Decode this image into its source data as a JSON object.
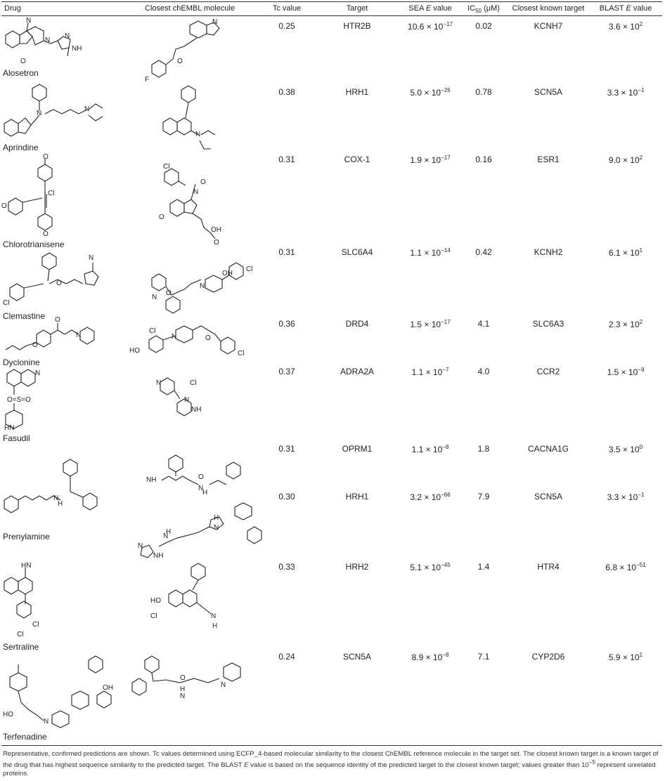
{
  "headers": {
    "drug": "Drug",
    "closest_chembl": "Closest chEMBL molecule",
    "tc": "Tc value",
    "target": "Target",
    "sea": "SEA E value",
    "ic50": "IC50 (μM)",
    "closest_known": "Closest known target",
    "blast": "BLAST E value"
  },
  "rows": [
    {
      "drug": "Alosetron",
      "tc": "0.25",
      "target": "HTR2B",
      "sea_m": "10.6",
      "sea_e": "−17",
      "ic50": "0.02",
      "known": "KCNH7",
      "blast_m": "3.6",
      "blast_e": "2"
    },
    {
      "drug": "Aprindine",
      "tc": "0.38",
      "target": "HRH1",
      "sea_m": "5.0",
      "sea_e": "−26",
      "ic50": "0.78",
      "known": "SCN5A",
      "blast_m": "3.3",
      "blast_e": "−1"
    },
    {
      "drug": "Chlorotrianisene",
      "tc": "0.31",
      "target": "COX-1",
      "sea_m": "1.9",
      "sea_e": "−17",
      "ic50": "0.16",
      "known": "ESR1",
      "blast_m": "9.0",
      "blast_e": "2"
    },
    {
      "drug": "Clemastine",
      "tc": "0.31",
      "target": "SLC6A4",
      "sea_m": "1.1",
      "sea_e": "−14",
      "ic50": "0.42",
      "known": "KCNH2",
      "blast_m": "6.1",
      "blast_e": "1"
    },
    {
      "drug": "Dyclonine",
      "tc": "0.36",
      "target": "DRD4",
      "sea_m": "1.5",
      "sea_e": "−17",
      "ic50": "4.1",
      "known": "SLC6A3",
      "blast_m": "2.3",
      "blast_e": "2"
    },
    {
      "drug": "Fasudil",
      "tc": "0.37",
      "target": "ADRA2A",
      "sea_m": "1.1",
      "sea_e": "−7",
      "ic50": "4.0",
      "known": "CCR2",
      "blast_m": "1.5",
      "blast_e": "−9"
    },
    {
      "drug": "",
      "tc": "0.31",
      "target": "OPRM1",
      "sea_m": "1.1",
      "sea_e": "−8",
      "ic50": "1.8",
      "known": "CACNA1G",
      "blast_m": "3.5",
      "blast_e": "0"
    },
    {
      "drug": "Prenylamine",
      "tc": "0.30",
      "target": "HRH1",
      "sea_m": "3.2",
      "sea_e": "−66",
      "ic50": "7.9",
      "known": "SCN5A",
      "blast_m": "3.3",
      "blast_e": "−1"
    },
    {
      "drug": "Sertraline",
      "tc": "0.33",
      "target": "HRH2",
      "sea_m": "5.1",
      "sea_e": "−45",
      "ic50": "1.4",
      "known": "HTR4",
      "blast_m": "6.8",
      "blast_e": "−51"
    },
    {
      "drug": "Terfenadine",
      "tc": "0.24",
      "target": "SCN5A",
      "sea_m": "8.9",
      "sea_e": "−8",
      "ic50": "7.1",
      "known": "CYP2D6",
      "blast_m": "5.9",
      "blast_e": "1"
    }
  ],
  "footnote": "Representative, confirmed predictions are shown. Tc values determined using ECFP_4-based molecular similarity to the closest ChEMBL reference molecule in the target set. The closest known target is a known target of the drug that has highest sequence similarity to the predicted target. The BLAST E value is based on the sequence identity of the predicted target to the closest known target; values greater than 10−5 represent unrelated proteins.",
  "atoms": {
    "n": "N",
    "nh": "NH",
    "hn": "HN",
    "o": "O",
    "cl": "Cl",
    "f": "F",
    "oh": "OH",
    "ho": "HO",
    "h": "H",
    "s": "S",
    "n_h": "N\nH"
  }
}
